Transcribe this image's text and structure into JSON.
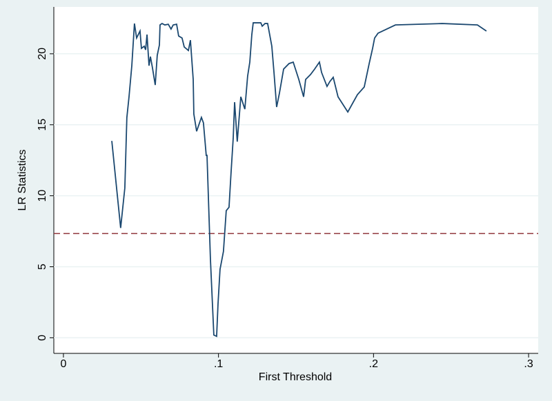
{
  "chart_data": {
    "type": "line",
    "x_label": "First Threshold",
    "y_label": "LR Statistics",
    "x": [
      0.0312,
      0.0369,
      0.0396,
      0.0409,
      0.0423,
      0.0441,
      0.0458,
      0.0472,
      0.0494,
      0.0503,
      0.0521,
      0.053,
      0.0539,
      0.0552,
      0.0561,
      0.0574,
      0.0592,
      0.0605,
      0.0619,
      0.0623,
      0.0636,
      0.0654,
      0.0676,
      0.0694,
      0.0708,
      0.073,
      0.0743,
      0.0765,
      0.0779,
      0.0806,
      0.0819,
      0.0837,
      0.0841,
      0.0859,
      0.089,
      0.0903,
      0.0921,
      0.0926,
      0.0948,
      0.097,
      0.0988,
      0.0997,
      0.101,
      0.1032,
      0.105,
      0.1068,
      0.1081,
      0.1095,
      0.1104,
      0.1121,
      0.1144,
      0.117,
      0.1188,
      0.1202,
      0.1215,
      0.1224,
      0.1255,
      0.1273,
      0.1282,
      0.13,
      0.1317,
      0.1344,
      0.1358,
      0.1375,
      0.1393,
      0.142,
      0.1455,
      0.1482,
      0.1518,
      0.1549,
      0.1562,
      0.1593,
      0.162,
      0.1651,
      0.1665,
      0.17,
      0.1718,
      0.174,
      0.1771,
      0.1834,
      0.1896,
      0.194,
      0.1972,
      0.1994,
      0.2007,
      0.2029,
      0.2141,
      0.2443,
      0.267,
      0.2728
    ],
    "series": [
      {
        "name": "LR",
        "color": "#1a476f",
        "values": [
          13.86,
          7.73,
          10.55,
          15.5,
          16.97,
          19.16,
          22.13,
          21.11,
          21.6,
          20.38,
          20.53,
          20.28,
          21.35,
          19.16,
          19.8,
          19.02,
          17.8,
          19.89,
          20.62,
          22.03,
          22.13,
          22.03,
          22.08,
          21.74,
          22.03,
          22.08,
          21.25,
          21.11,
          20.48,
          20.23,
          20.96,
          18.19,
          15.76,
          14.54,
          15.52,
          15.13,
          12.84,
          12.84,
          5.54,
          0.19,
          0.1,
          2.38,
          4.82,
          6.08,
          8.95,
          9.19,
          11.62,
          14.06,
          16.59,
          13.81,
          16.97,
          16.1,
          18.43,
          19.41,
          21.35,
          22.18,
          22.18,
          22.18,
          21.94,
          22.13,
          22.13,
          20.53,
          18.68,
          16.25,
          17.22,
          18.92,
          19.31,
          19.41,
          18.19,
          16.97,
          18.19,
          18.53,
          18.92,
          19.41,
          18.68,
          17.7,
          18.04,
          18.34,
          16.97,
          15.9,
          17.12,
          17.66,
          19.31,
          20.38,
          21.11,
          21.45,
          22.03,
          22.13,
          22.03,
          21.6
        ]
      }
    ],
    "reference_line": {
      "value": 7.34,
      "color": "#90353b"
    },
    "xlim": [
      -0.0062,
      0.3062
    ],
    "ylim": [
      -1.1,
      23.3
    ],
    "xticks": [
      0,
      {
        "value": 0.1,
        "label": ".1"
      },
      {
        "value": 0.2,
        "label": ".2"
      },
      {
        "value": 0.3,
        "label": ".3"
      }
    ],
    "yticks": [
      0,
      5,
      10,
      15,
      20
    ],
    "grid": true
  }
}
